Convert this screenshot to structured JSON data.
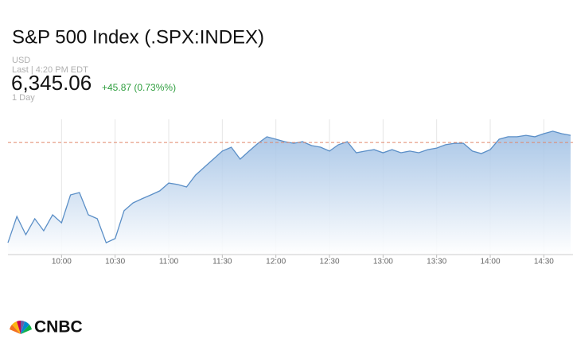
{
  "header": {
    "title": "S&P 500 Index (.SPX:INDEX)",
    "currency": "USD",
    "last_label": "Last | 4:20 PM EDT",
    "price": "6,345.06",
    "change": "+45.87 (0.73%%)",
    "period": "1 Day"
  },
  "logo": "CNBC",
  "chart_data": {
    "type": "area",
    "x": [
      "9:30",
      "9:35",
      "9:40",
      "9:45",
      "9:50",
      "9:55",
      "10:00",
      "10:05",
      "10:10",
      "10:15",
      "10:20",
      "10:25",
      "10:30",
      "10:35",
      "10:40",
      "10:45",
      "10:50",
      "10:55",
      "11:00",
      "11:05",
      "11:10",
      "11:15",
      "11:20",
      "11:25",
      "11:30",
      "11:35",
      "11:40",
      "11:45",
      "11:50",
      "11:55",
      "12:00",
      "12:05",
      "12:10",
      "12:15",
      "12:20",
      "12:25",
      "12:30",
      "12:35",
      "12:40",
      "12:45",
      "12:50",
      "12:55",
      "13:00",
      "13:05",
      "13:10",
      "13:15",
      "13:20",
      "13:25",
      "13:30",
      "13:35",
      "13:40",
      "13:45",
      "13:50",
      "13:55",
      "14:00",
      "14:05",
      "14:10",
      "14:15",
      "14:20",
      "14:25",
      "14:30",
      "14:35",
      "14:40",
      "14:45"
    ],
    "values": [
      6294.8,
      6307.6,
      6298.7,
      6306.5,
      6300.6,
      6308.4,
      6304.5,
      6318.1,
      6319.3,
      6308.4,
      6306.5,
      6294.8,
      6296.8,
      6310.4,
      6314.2,
      6316.2,
      6318.1,
      6320.1,
      6323.9,
      6323.2,
      6322.0,
      6327.8,
      6331.7,
      6335.6,
      6339.5,
      6341.4,
      6335.6,
      6339.5,
      6343.3,
      6346.5,
      6345.3,
      6344.1,
      6343.3,
      6344.1,
      6342.2,
      6341.4,
      6339.5,
      6342.6,
      6344.1,
      6338.7,
      6339.5,
      6340.2,
      6338.7,
      6340.2,
      6338.7,
      6339.5,
      6338.7,
      6340.2,
      6341.0,
      6342.6,
      6343.3,
      6343.3,
      6339.5,
      6338.3,
      6340.2,
      6345.3,
      6346.5,
      6346.5,
      6347.2,
      6346.5,
      6348.0,
      6349.2,
      6348.0,
      6347.2
    ],
    "color": "#5b8fc7",
    "ylim": [
      6289,
      6355
    ],
    "xticks": [
      "10:00",
      "10:30",
      "11:00",
      "11:30",
      "12:00",
      "12:30",
      "13:00",
      "13:30",
      "14:00",
      "14:30"
    ],
    "reference_line": 6343.7,
    "reference_color": "#e0866b",
    "grid": true
  }
}
